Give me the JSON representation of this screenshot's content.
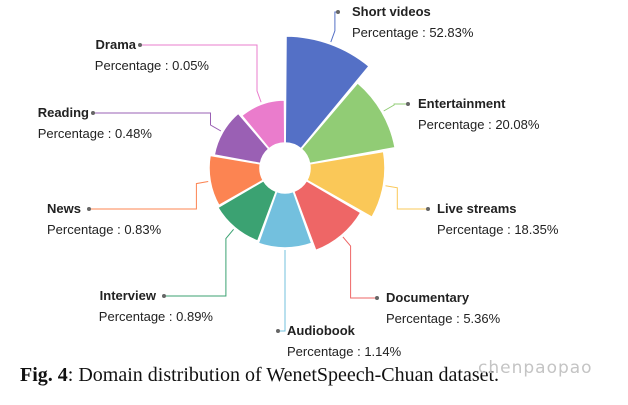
{
  "chart_data": {
    "type": "pie",
    "variant": "rose",
    "percentage_label": "Percentage",
    "slices": [
      {
        "name": "Short videos",
        "value": 52.83,
        "color": "#5470c6"
      },
      {
        "name": "Entertainment",
        "value": 20.08,
        "color": "#91cc75"
      },
      {
        "name": "Live streams",
        "value": 18.35,
        "color": "#fac858"
      },
      {
        "name": "Documentary",
        "value": 5.36,
        "color": "#ee6666"
      },
      {
        "name": "Audiobook",
        "value": 1.14,
        "color": "#73c0de"
      },
      {
        "name": "Interview",
        "value": 0.89,
        "color": "#3ba272"
      },
      {
        "name": "News",
        "value": 0.83,
        "color": "#fc8452"
      },
      {
        "name": "Reading",
        "value": 0.48,
        "color": "#9a60b4"
      },
      {
        "name": "Drama",
        "value": 0.05,
        "color": "#ea7ccc"
      }
    ]
  },
  "caption": {
    "fig_label": "Fig. 4",
    "text": ": Domain distribution of WenetSpeech-Chuan dataset."
  },
  "watermark": "chenpaopao"
}
